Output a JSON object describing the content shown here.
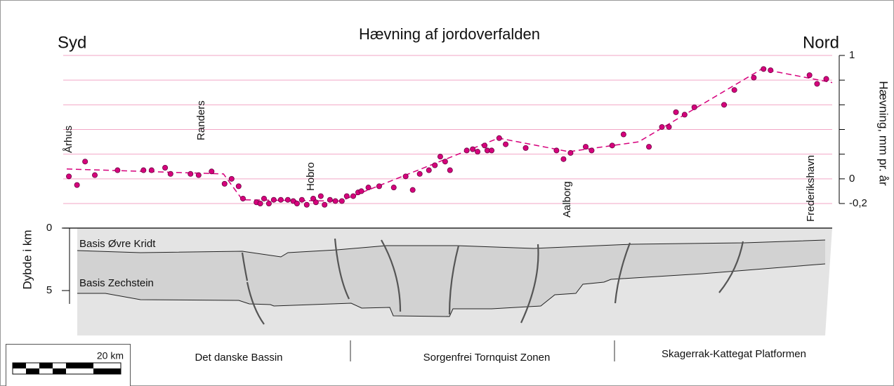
{
  "chart_data": {
    "type": "scatter",
    "title": "Hævning af jordoverfalden",
    "left_label": "Syd",
    "right_label": "Nord",
    "ylabel": "Hævning, mm pr. år",
    "places": [
      "Århus",
      "Randers",
      "Hobro",
      "Aalborg",
      "Frederikshavn"
    ],
    "xlim": [
      0,
      141.6
    ],
    "ylim": [
      -0.2,
      1
    ],
    "yticks": [
      1,
      0,
      {
        "value": -0.2,
        "label": "-0,2"
      }
    ],
    "minor_yticks": [
      0.2,
      0.4,
      0.6,
      0.8
    ],
    "grid": true,
    "grid_color": "#f2a6c6",
    "points": {
      "color": "#d6007c",
      "x": [
        0.4,
        1.9,
        3.4,
        5.2,
        9.4,
        14.2,
        15.7,
        18.2,
        19.2,
        22.9,
        24.4,
        26.8,
        29.2,
        30.5,
        31.8,
        32.6,
        35.1,
        35.8,
        36.5,
        37.4,
        38.3,
        39.6,
        40.9,
        41.9,
        42.6,
        43.5,
        44.4,
        45.6,
        46.1,
        47.0,
        47.7,
        48.7,
        49.7,
        50.9,
        51.8,
        53.0,
        53.9,
        54.5,
        55.8,
        57.8,
        60.5,
        62.7,
        64.0,
        65.3,
        67.0,
        68.1,
        69.1,
        70.0,
        70.9,
        74.0,
        75.1,
        76.0,
        77.3,
        77.8,
        78.6,
        80.0,
        81.2,
        84.9,
        90.6,
        91.9,
        93.2,
        96.0,
        97.1,
        100.9,
        103.0,
        107.7,
        110.1,
        111.4,
        112.7,
        114.3,
        116.1,
        121.6,
        123.5,
        127.1,
        128.9,
        130.2,
        137.4,
        138.8,
        140.5
      ],
      "values": [
        0.02,
        -0.05,
        0.14,
        0.03,
        0.07,
        0.07,
        0.07,
        0.09,
        0.04,
        0.04,
        0.03,
        0.06,
        -0.04,
        0,
        -0.06,
        -0.16,
        -0.19,
        -0.2,
        -0.16,
        -0.2,
        -0.17,
        -0.17,
        -0.17,
        -0.18,
        -0.2,
        -0.17,
        -0.21,
        -0.16,
        -0.19,
        -0.14,
        -0.21,
        -0.17,
        -0.18,
        -0.18,
        -0.14,
        -0.14,
        -0.11,
        -0.1,
        -0.07,
        -0.06,
        -0.07,
        0.02,
        -0.09,
        0.04,
        0.07,
        0.11,
        0.18,
        0.14,
        0.07,
        0.23,
        0.24,
        0.22,
        0.27,
        0.23,
        0.23,
        0.33,
        0.28,
        0.25,
        0.23,
        0.16,
        0.21,
        0.26,
        0.23,
        0.27,
        0.36,
        0.26,
        0.42,
        0.42,
        0.54,
        0.52,
        0.58,
        0.6,
        0.72,
        0.82,
        0.89,
        0.88,
        0.84,
        0.77,
        0.81
      ]
    },
    "trend": {
      "color": "#d6007c",
      "x": [
        0,
        29.0,
        32.5,
        50.6,
        79.9,
        92.9,
        105.8,
        128.6,
        141.6
      ],
      "values": [
        0.08,
        0.04,
        -0.17,
        -0.18,
        0.33,
        0.22,
        0.3,
        0.89,
        0.78
      ]
    }
  },
  "cross_section": {
    "ylabel": "Dybde i km",
    "yticks": [
      0,
      5
    ],
    "ylim": [
      0,
      5
    ],
    "layers": [
      "Basis Øvre Kridt",
      "Basis Zechstein"
    ],
    "zones": [
      "Det danske Bassin",
      "Sorgenfrei Tornquist Zonen",
      "Skagerrak-Kattegat Platformen"
    ]
  },
  "scale_bar": {
    "label": "20 km"
  }
}
